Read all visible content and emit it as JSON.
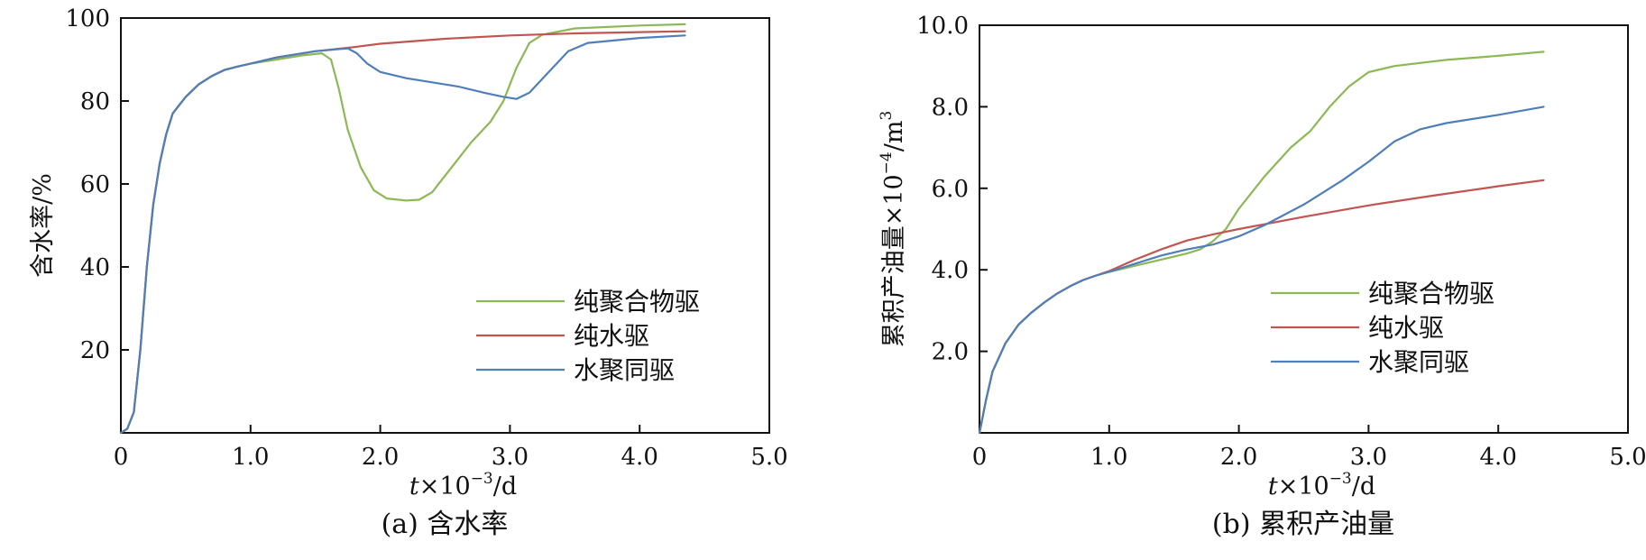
{
  "chart_data": [
    {
      "type": "line",
      "caption": "(a) 含水率",
      "xlabel": {
        "var": "t",
        "text": "×10",
        "sup": "−3",
        "unit": "/d"
      },
      "ylabel": "含水率/%",
      "xlim": [
        0,
        5.0
      ],
      "ylim": [
        0,
        100
      ],
      "xticks": [
        "0",
        "1.0",
        "2.0",
        "3.0",
        "4.0",
        "5.0"
      ],
      "xtick_values": [
        0,
        1,
        2,
        3,
        4,
        5
      ],
      "yticks": [
        "20",
        "40",
        "60",
        "80",
        "100"
      ],
      "ytick_values": [
        20,
        40,
        60,
        80,
        100
      ],
      "legend_position": "lower-right",
      "series": [
        {
          "name": "纯聚合物驱",
          "color": "#8db857",
          "points": [
            [
              0,
              0
            ],
            [
              0.05,
              1
            ],
            [
              0.1,
              5
            ],
            [
              0.15,
              20
            ],
            [
              0.2,
              40
            ],
            [
              0.25,
              55
            ],
            [
              0.3,
              65
            ],
            [
              0.35,
              72
            ],
            [
              0.4,
              77
            ],
            [
              0.5,
              81
            ],
            [
              0.6,
              84
            ],
            [
              0.7,
              86
            ],
            [
              0.8,
              87.5
            ],
            [
              0.9,
              88.3
            ],
            [
              1.0,
              89
            ],
            [
              1.2,
              90
            ],
            [
              1.4,
              91
            ],
            [
              1.55,
              91.5
            ],
            [
              1.62,
              90
            ],
            [
              1.68,
              83
            ],
            [
              1.75,
              73
            ],
            [
              1.85,
              64
            ],
            [
              1.95,
              58.5
            ],
            [
              2.05,
              56.5
            ],
            [
              2.2,
              56
            ],
            [
              2.3,
              56.2
            ],
            [
              2.4,
              58
            ],
            [
              2.5,
              62
            ],
            [
              2.6,
              66
            ],
            [
              2.7,
              70
            ],
            [
              2.85,
              75
            ],
            [
              2.95,
              80
            ],
            [
              3.05,
              88
            ],
            [
              3.15,
              94
            ],
            [
              3.25,
              96
            ],
            [
              3.5,
              97.5
            ],
            [
              4.0,
              98.2
            ],
            [
              4.35,
              98.5
            ]
          ]
        },
        {
          "name": "纯水驱",
          "color": "#c05552",
          "points": [
            [
              0,
              0
            ],
            [
              0.05,
              1
            ],
            [
              0.1,
              5
            ],
            [
              0.15,
              20
            ],
            [
              0.2,
              40
            ],
            [
              0.25,
              55
            ],
            [
              0.3,
              65
            ],
            [
              0.35,
              72
            ],
            [
              0.4,
              77
            ],
            [
              0.5,
              81
            ],
            [
              0.6,
              84
            ],
            [
              0.7,
              86
            ],
            [
              0.8,
              87.5
            ],
            [
              0.9,
              88.3
            ],
            [
              1.0,
              89
            ],
            [
              1.2,
              90.5
            ],
            [
              1.5,
              92
            ],
            [
              1.8,
              93
            ],
            [
              2.0,
              93.8
            ],
            [
              2.5,
              95
            ],
            [
              3.0,
              95.8
            ],
            [
              3.5,
              96.3
            ],
            [
              4.0,
              96.6
            ],
            [
              4.35,
              96.8
            ]
          ]
        },
        {
          "name": "水聚同驱",
          "color": "#4f7fb8",
          "points": [
            [
              0,
              0
            ],
            [
              0.05,
              1
            ],
            [
              0.1,
              5
            ],
            [
              0.15,
              20
            ],
            [
              0.2,
              40
            ],
            [
              0.25,
              55
            ],
            [
              0.3,
              65
            ],
            [
              0.35,
              72
            ],
            [
              0.4,
              77
            ],
            [
              0.5,
              81
            ],
            [
              0.6,
              84
            ],
            [
              0.7,
              86
            ],
            [
              0.8,
              87.5
            ],
            [
              0.9,
              88.3
            ],
            [
              1.0,
              89
            ],
            [
              1.2,
              90.5
            ],
            [
              1.5,
              92
            ],
            [
              1.75,
              92.7
            ],
            [
              1.82,
              91.5
            ],
            [
              1.9,
              89
            ],
            [
              2.0,
              87
            ],
            [
              2.2,
              85.5
            ],
            [
              2.4,
              84.5
            ],
            [
              2.6,
              83.5
            ],
            [
              2.8,
              82
            ],
            [
              2.95,
              81
            ],
            [
              3.05,
              80.5
            ],
            [
              3.15,
              82
            ],
            [
              3.3,
              87
            ],
            [
              3.45,
              92
            ],
            [
              3.6,
              94
            ],
            [
              4.0,
              95.2
            ],
            [
              4.35,
              95.8
            ]
          ]
        }
      ]
    },
    {
      "type": "line",
      "caption": "(b) 累积产油量",
      "xlabel": {
        "var": "t",
        "text": "×10",
        "sup": "−3",
        "unit": "/d"
      },
      "ylabel": {
        "text": "累积产油量×10",
        "sup1": "−4",
        "unit": "/m",
        "sup2": "3"
      },
      "xlim": [
        0,
        5.0
      ],
      "ylim": [
        0,
        10.0
      ],
      "xticks": [
        "0",
        "1.0",
        "2.0",
        "3.0",
        "4.0",
        "5.0"
      ],
      "xtick_values": [
        0,
        1,
        2,
        3,
        4,
        5
      ],
      "yticks": [
        "2.0",
        "4.0",
        "6.0",
        "8.0",
        "10.0"
      ],
      "ytick_values": [
        2,
        4,
        6,
        8,
        10
      ],
      "legend_position": "lower-right",
      "series": [
        {
          "name": "纯聚合物驱",
          "color": "#8db857",
          "points": [
            [
              0,
              0
            ],
            [
              0.05,
              0.8
            ],
            [
              0.1,
              1.5
            ],
            [
              0.2,
              2.2
            ],
            [
              0.3,
              2.65
            ],
            [
              0.4,
              2.95
            ],
            [
              0.5,
              3.2
            ],
            [
              0.6,
              3.42
            ],
            [
              0.7,
              3.6
            ],
            [
              0.8,
              3.75
            ],
            [
              0.9,
              3.86
            ],
            [
              1.0,
              3.95
            ],
            [
              1.2,
              4.1
            ],
            [
              1.4,
              4.25
            ],
            [
              1.6,
              4.4
            ],
            [
              1.7,
              4.5
            ],
            [
              1.8,
              4.7
            ],
            [
              1.9,
              5.0
            ],
            [
              2.0,
              5.5
            ],
            [
              2.2,
              6.3
            ],
            [
              2.4,
              7.0
            ],
            [
              2.55,
              7.4
            ],
            [
              2.7,
              8.0
            ],
            [
              2.85,
              8.5
            ],
            [
              3.0,
              8.85
            ],
            [
              3.2,
              9.0
            ],
            [
              3.6,
              9.15
            ],
            [
              4.0,
              9.25
            ],
            [
              4.35,
              9.35
            ]
          ]
        },
        {
          "name": "纯水驱",
          "color": "#c05552",
          "points": [
            [
              0,
              0
            ],
            [
              0.05,
              0.8
            ],
            [
              0.1,
              1.5
            ],
            [
              0.2,
              2.2
            ],
            [
              0.3,
              2.65
            ],
            [
              0.4,
              2.95
            ],
            [
              0.5,
              3.2
            ],
            [
              0.6,
              3.42
            ],
            [
              0.7,
              3.6
            ],
            [
              0.8,
              3.75
            ],
            [
              0.9,
              3.86
            ],
            [
              1.0,
              3.97
            ],
            [
              1.2,
              4.25
            ],
            [
              1.4,
              4.5
            ],
            [
              1.6,
              4.72
            ],
            [
              1.8,
              4.87
            ],
            [
              2.0,
              5.0
            ],
            [
              2.5,
              5.3
            ],
            [
              3.0,
              5.58
            ],
            [
              3.5,
              5.82
            ],
            [
              4.0,
              6.05
            ],
            [
              4.35,
              6.2
            ]
          ]
        },
        {
          "name": "水聚同驱",
          "color": "#4f7fb8",
          "points": [
            [
              0,
              0
            ],
            [
              0.05,
              0.8
            ],
            [
              0.1,
              1.5
            ],
            [
              0.2,
              2.2
            ],
            [
              0.3,
              2.65
            ],
            [
              0.4,
              2.95
            ],
            [
              0.5,
              3.2
            ],
            [
              0.6,
              3.42
            ],
            [
              0.7,
              3.6
            ],
            [
              0.8,
              3.75
            ],
            [
              0.9,
              3.86
            ],
            [
              1.0,
              3.95
            ],
            [
              1.2,
              4.15
            ],
            [
              1.4,
              4.35
            ],
            [
              1.6,
              4.5
            ],
            [
              1.8,
              4.62
            ],
            [
              2.0,
              4.82
            ],
            [
              2.2,
              5.1
            ],
            [
              2.5,
              5.6
            ],
            [
              2.8,
              6.2
            ],
            [
              3.0,
              6.65
            ],
            [
              3.2,
              7.15
            ],
            [
              3.4,
              7.45
            ],
            [
              3.6,
              7.6
            ],
            [
              4.0,
              7.8
            ],
            [
              4.35,
              8.0
            ]
          ]
        }
      ]
    }
  ]
}
